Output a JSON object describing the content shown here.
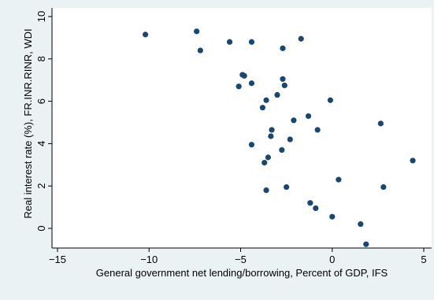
{
  "chart_data": {
    "type": "scatter",
    "title": "",
    "xlabel": "General government net lending/borrowing, Percent of GDP, IFS",
    "ylabel": "Real interest rate (%), FR.INR.RINR, WDI",
    "xlim": [
      -15,
      5
    ],
    "ylim": [
      -0.7,
      10
    ],
    "xticks": [
      -15,
      -10,
      -5,
      0,
      5
    ],
    "yticks": [
      0,
      2,
      4,
      6,
      8,
      10
    ],
    "grid": false,
    "marker_color": "#1a476f",
    "points": [
      {
        "x": -10.2,
        "y": 9.15
      },
      {
        "x": -7.4,
        "y": 9.3
      },
      {
        "x": -7.2,
        "y": 8.4
      },
      {
        "x": -5.6,
        "y": 8.8
      },
      {
        "x": -4.4,
        "y": 8.8
      },
      {
        "x": -1.7,
        "y": 8.95
      },
      {
        "x": -2.7,
        "y": 8.5
      },
      {
        "x": -4.9,
        "y": 7.25
      },
      {
        "x": -4.8,
        "y": 7.2
      },
      {
        "x": -4.4,
        "y": 6.85
      },
      {
        "x": -5.1,
        "y": 6.7
      },
      {
        "x": -2.7,
        "y": 7.05
      },
      {
        "x": -2.6,
        "y": 6.75
      },
      {
        "x": -3.0,
        "y": 6.3
      },
      {
        "x": -3.6,
        "y": 6.05
      },
      {
        "x": -3.8,
        "y": 5.7
      },
      {
        "x": -0.1,
        "y": 6.05
      },
      {
        "x": -1.3,
        "y": 5.3
      },
      {
        "x": -2.1,
        "y": 5.1
      },
      {
        "x": -0.8,
        "y": 4.65
      },
      {
        "x": -3.3,
        "y": 4.65
      },
      {
        "x": -3.35,
        "y": 4.35
      },
      {
        "x": -2.3,
        "y": 4.2
      },
      {
        "x": -4.4,
        "y": 3.95
      },
      {
        "x": -2.75,
        "y": 3.7
      },
      {
        "x": -3.5,
        "y": 3.35
      },
      {
        "x": -3.7,
        "y": 3.1
      },
      {
        "x": 2.65,
        "y": 4.95
      },
      {
        "x": 4.4,
        "y": 3.2
      },
      {
        "x": 0.35,
        "y": 2.3
      },
      {
        "x": 2.8,
        "y": 1.95
      },
      {
        "x": -2.5,
        "y": 1.95
      },
      {
        "x": -3.6,
        "y": 1.8
      },
      {
        "x": -1.2,
        "y": 1.2
      },
      {
        "x": -0.9,
        "y": 0.95
      },
      {
        "x": 0.0,
        "y": 0.55
      },
      {
        "x": 1.55,
        "y": 0.2
      },
      {
        "x": 1.85,
        "y": -0.75
      }
    ]
  }
}
